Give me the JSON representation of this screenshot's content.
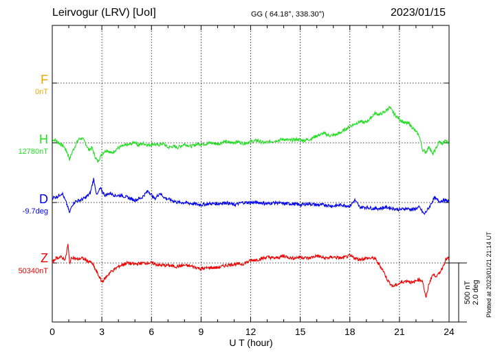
{
  "header": {
    "station": "Leirvogur (LRV)  [UoI]",
    "coords": "GG ( 64.18°, 338.30°)",
    "date": "2023/01/15"
  },
  "footer": {
    "plotted": "Plotted at 2023/01/21 21:14 UT"
  },
  "scale_bar": {
    "line1": "500 nT",
    "line2": "2.0 deg"
  },
  "components": [
    {
      "letter": "F",
      "baseline": "0nT",
      "color": "#f0a800"
    },
    {
      "letter": "H",
      "baseline": "12780nT",
      "color": "#22dd22"
    },
    {
      "letter": "D",
      "baseline": "-9.7deg",
      "color": "#0000ee"
    },
    {
      "letter": "Z",
      "baseline": "50340nT",
      "color": "#ee0000"
    }
  ],
  "chart_data": {
    "type": "line",
    "xlabel": "U T (hour)",
    "xlim": [
      0,
      24
    ],
    "x_ticks": [
      "0",
      "3",
      "6",
      "9",
      "12",
      "15",
      "18",
      "21",
      "24"
    ],
    "grid": true,
    "y_units": "nT (offset from baseline; 500 nT = 2.0 deg for D)",
    "series": [
      {
        "name": "F",
        "color": "#f0a800",
        "x": [],
        "values": []
      },
      {
        "name": "H",
        "color": "#22dd22",
        "x": [
          0,
          0.2,
          0.5,
          0.7,
          0.9,
          1.05,
          1.2,
          1.4,
          1.6,
          1.8,
          2.0,
          2.2,
          2.4,
          2.6,
          2.75,
          2.9,
          3.1,
          3.3,
          3.6,
          3.9,
          4.2,
          4.5,
          4.8,
          5.0,
          5.2,
          5.5,
          5.8,
          6.1,
          6.4,
          6.7,
          7.0,
          7.3,
          7.6,
          8.0,
          8.4,
          8.8,
          9.2,
          9.6,
          10.0,
          10.4,
          10.8,
          11.2,
          11.6,
          12.0,
          12.4,
          12.8,
          13.2,
          13.6,
          14.0,
          14.4,
          14.8,
          15.2,
          15.6,
          16.0,
          16.4,
          16.8,
          17.2,
          17.6,
          18.0,
          18.3,
          18.6,
          18.9,
          19.2,
          19.5,
          19.8,
          20.1,
          20.4,
          20.7,
          21.0,
          21.3,
          21.6,
          21.9,
          22.2,
          22.4,
          22.6,
          22.8,
          23.0,
          23.2,
          23.4,
          23.6,
          23.8,
          24.0
        ],
        "values": [
          30,
          20,
          -10,
          -30,
          -80,
          -140,
          -80,
          -20,
          30,
          40,
          0,
          -60,
          -40,
          -120,
          -160,
          -120,
          -80,
          -60,
          -90,
          -50,
          -30,
          -20,
          -10,
          10,
          -20,
          -5,
          -20,
          -10,
          -20,
          -5,
          -40,
          -30,
          -40,
          -10,
          -30,
          -10,
          -10,
          0,
          -10,
          10,
          0,
          10,
          -5,
          10,
          20,
          0,
          10,
          20,
          30,
          20,
          30,
          20,
          30,
          60,
          80,
          60,
          70,
          100,
          140,
          160,
          180,
          170,
          200,
          250,
          240,
          260,
          300,
          240,
          200,
          170,
          160,
          110,
          60,
          -60,
          -80,
          -30,
          -100,
          -50,
          10,
          -10,
          20,
          -10
        ]
      },
      {
        "name": "D",
        "color": "#0000ee",
        "x": [
          0,
          0.3,
          0.6,
          0.9,
          1.05,
          1.2,
          1.4,
          1.7,
          2.0,
          2.3,
          2.5,
          2.7,
          2.9,
          3.2,
          3.5,
          3.8,
          4.2,
          4.6,
          5.0,
          5.4,
          5.8,
          6.2,
          6.5,
          6.8,
          7.2,
          7.6,
          8.0,
          8.5,
          9.0,
          9.5,
          10.0,
          10.5,
          11.0,
          11.5,
          12.0,
          12.5,
          13.0,
          13.5,
          14.0,
          14.5,
          15.0,
          15.5,
          16.0,
          16.5,
          17.0,
          17.5,
          18.0,
          18.3,
          18.6,
          19.0,
          19.4,
          19.8,
          20.2,
          20.6,
          21.0,
          21.4,
          21.8,
          22.2,
          22.5,
          22.8,
          23.1,
          23.4,
          23.7,
          24.0
        ],
        "values": [
          40,
          50,
          80,
          -20,
          -90,
          -20,
          10,
          20,
          40,
          80,
          200,
          60,
          120,
          60,
          80,
          60,
          60,
          40,
          20,
          40,
          100,
          30,
          80,
          40,
          20,
          0,
          0,
          -10,
          -20,
          -10,
          -10,
          0,
          -20,
          0,
          0,
          0,
          -10,
          0,
          -10,
          -10,
          -20,
          -10,
          -20,
          -20,
          -30,
          -20,
          -30,
          20,
          -40,
          -40,
          -50,
          -50,
          -40,
          -50,
          -60,
          -50,
          -60,
          -40,
          -100,
          -40,
          40,
          10,
          20,
          10
        ]
      },
      {
        "name": "Z",
        "color": "#ee0000",
        "x": [
          0,
          0.2,
          0.5,
          0.8,
          0.95,
          1.05,
          1.2,
          1.5,
          1.8,
          2.1,
          2.4,
          2.7,
          3.0,
          3.2,
          3.5,
          4.0,
          4.5,
          5.0,
          5.5,
          6.0,
          6.5,
          7.0,
          7.5,
          8.0,
          8.5,
          9.0,
          9.5,
          10.0,
          10.5,
          11.0,
          11.5,
          12.0,
          12.5,
          13.0,
          13.5,
          14.0,
          14.5,
          15.0,
          15.5,
          16.0,
          16.5,
          17.0,
          17.5,
          18.0,
          18.5,
          19.0,
          19.5,
          20.0,
          20.3,
          20.6,
          20.9,
          21.2,
          21.5,
          21.8,
          22.1,
          22.4,
          22.6,
          22.8,
          23.0,
          23.3,
          23.6,
          23.8,
          24.0
        ],
        "values": [
          0,
          40,
          50,
          30,
          160,
          0,
          50,
          30,
          40,
          20,
          0,
          -80,
          -160,
          -130,
          -80,
          -30,
          0,
          -10,
          0,
          0,
          -20,
          -20,
          -30,
          -20,
          -30,
          -50,
          -40,
          -40,
          -20,
          -10,
          -10,
          20,
          30,
          50,
          40,
          60,
          40,
          50,
          40,
          60,
          40,
          50,
          40,
          60,
          30,
          40,
          40,
          -60,
          -150,
          -200,
          -180,
          -160,
          -150,
          -170,
          -140,
          -150,
          -300,
          -170,
          -100,
          -110,
          -40,
          30,
          40
        ]
      }
    ]
  }
}
